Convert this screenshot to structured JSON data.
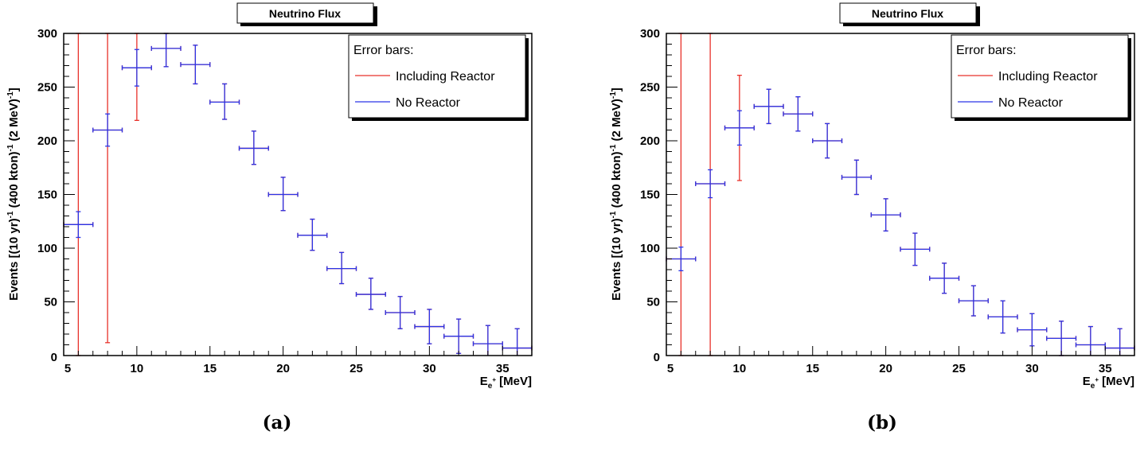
{
  "chart_data": [
    {
      "type": "scatter",
      "title": "Neutrino Flux",
      "xlabel": "E_{e+} [MeV]",
      "ylabel": "Events [(10 yr)^-1 (400 kton)^-1 (2 MeV)^-1]",
      "xlim": [
        5,
        37
      ],
      "ylim": [
        0,
        300
      ],
      "xticks": [
        5,
        10,
        15,
        20,
        25,
        30,
        35
      ],
      "yticks": [
        0,
        50,
        100,
        150,
        200,
        250,
        300
      ],
      "grid": false,
      "legend_position": "top-right",
      "legend_header": "Error bars:",
      "bin_width": 2,
      "series": [
        {
          "name": "Including Reactor",
          "color": "#e8312a",
          "x": [
            6,
            8,
            10,
            12,
            14,
            16,
            18,
            20,
            22,
            24,
            26,
            28,
            30,
            32,
            34,
            36
          ],
          "y": [
            122,
            210,
            268,
            286,
            271,
            236,
            193,
            150,
            112,
            81,
            57,
            40,
            27,
            18,
            11,
            7
          ],
          "err_low": [
            122,
            198,
            49,
            17,
            18,
            16,
            15,
            15,
            14,
            14,
            14,
            15,
            16,
            16,
            17,
            18
          ],
          "err_high": [
            178,
            90,
            32,
            14,
            18,
            17,
            16,
            16,
            15,
            15,
            15,
            15,
            16,
            16,
            17,
            18
          ]
        },
        {
          "name": "No Reactor",
          "color": "#2b34e6",
          "x": [
            6,
            8,
            10,
            12,
            14,
            16,
            18,
            20,
            22,
            24,
            26,
            28,
            30,
            32,
            34,
            36
          ],
          "y": [
            122,
            210,
            268,
            286,
            271,
            236,
            193,
            150,
            112,
            81,
            57,
            40,
            27,
            18,
            11,
            7
          ],
          "err_low": [
            12,
            15,
            17,
            17,
            18,
            16,
            15,
            15,
            14,
            14,
            14,
            15,
            16,
            16,
            17,
            18
          ],
          "err_high": [
            12,
            15,
            17,
            14,
            18,
            17,
            16,
            16,
            15,
            15,
            15,
            15,
            16,
            16,
            17,
            18
          ]
        }
      ]
    },
    {
      "type": "scatter",
      "title": "Neutrino Flux",
      "xlabel": "E_{e+} [MeV]",
      "ylabel": "Events [(10 yr)^-1 (400 kton)^-1 (2 MeV)^-1]",
      "xlim": [
        5,
        37
      ],
      "ylim": [
        0,
        300
      ],
      "xticks": [
        5,
        10,
        15,
        20,
        25,
        30,
        35
      ],
      "yticks": [
        0,
        50,
        100,
        150,
        200,
        250,
        300
      ],
      "grid": false,
      "legend_position": "top-right",
      "legend_header": "Error bars:",
      "bin_width": 2,
      "series": [
        {
          "name": "Including Reactor",
          "color": "#e8312a",
          "x": [
            6,
            8,
            10,
            12,
            14,
            16,
            18,
            20,
            22,
            24,
            26,
            28,
            30,
            32,
            34,
            36
          ],
          "y": [
            90,
            160,
            212,
            232,
            225,
            200,
            166,
            131,
            99,
            72,
            51,
            36,
            24,
            16,
            10,
            7
          ],
          "err_low": [
            90,
            160,
            49,
            16,
            16,
            16,
            16,
            15,
            15,
            14,
            14,
            15,
            15,
            16,
            17,
            18
          ],
          "err_high": [
            210,
            140,
            49,
            16,
            16,
            16,
            16,
            15,
            15,
            14,
            14,
            15,
            15,
            16,
            17,
            18
          ]
        },
        {
          "name": "No Reactor",
          "color": "#2b34e6",
          "x": [
            6,
            8,
            10,
            12,
            14,
            16,
            18,
            20,
            22,
            24,
            26,
            28,
            30,
            32,
            34,
            36
          ],
          "y": [
            90,
            160,
            212,
            232,
            225,
            200,
            166,
            131,
            99,
            72,
            51,
            36,
            24,
            16,
            10,
            7
          ],
          "err_low": [
            11,
            13,
            16,
            16,
            16,
            16,
            16,
            15,
            15,
            14,
            14,
            15,
            15,
            16,
            17,
            18
          ],
          "err_high": [
            11,
            13,
            16,
            16,
            16,
            16,
            16,
            15,
            15,
            14,
            14,
            15,
            15,
            16,
            17,
            18
          ]
        }
      ]
    }
  ],
  "captions": [
    "(a)",
    "(b)"
  ]
}
